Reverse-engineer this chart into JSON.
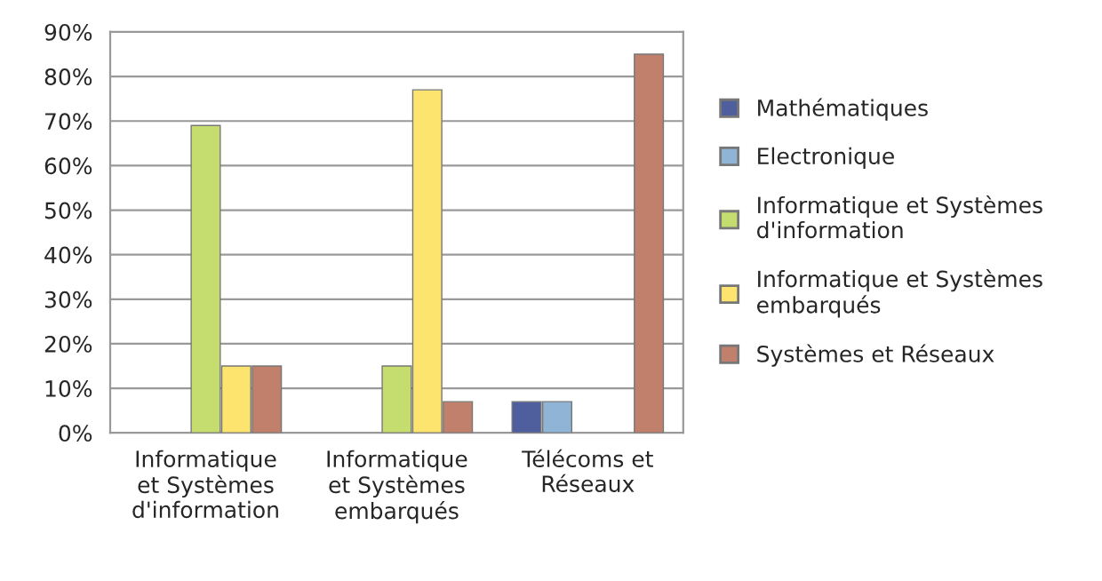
{
  "chart_data": {
    "type": "bar",
    "categories": [
      "Informatique\net Systèmes\nd'information",
      "Informatique\net Systèmes\nembarqués",
      "Télécoms et\nRéseaux"
    ],
    "series": [
      {
        "name": "Mathématiques",
        "color": "#4f5f9e",
        "values": [
          null,
          null,
          7
        ]
      },
      {
        "name": "Electronique",
        "color": "#8fb4d6",
        "values": [
          null,
          null,
          7
        ]
      },
      {
        "name": "Informatique et Systèmes\nd'information",
        "color": "#c5dc6e",
        "values": [
          69,
          15,
          null
        ]
      },
      {
        "name": "Informatique et Systèmes\nembarqués",
        "color": "#fde46e",
        "values": [
          15,
          77,
          null
        ]
      },
      {
        "name": "Systèmes et Réseaux",
        "color": "#c0806c",
        "values": [
          15,
          7,
          85
        ]
      }
    ],
    "ylim": [
      0,
      90
    ],
    "yticks": [
      {
        "value": 0,
        "label": "0%"
      },
      {
        "value": 10,
        "label": "10%"
      },
      {
        "value": 20,
        "label": "20%"
      },
      {
        "value": 30,
        "label": "30%"
      },
      {
        "value": 40,
        "label": "40%"
      },
      {
        "value": 50,
        "label": "50%"
      },
      {
        "value": 60,
        "label": "60%"
      },
      {
        "value": 70,
        "label": "70%"
      },
      {
        "value": 80,
        "label": "80%"
      },
      {
        "value": 90,
        "label": "90%"
      }
    ],
    "grid": "y",
    "legend": "right"
  }
}
